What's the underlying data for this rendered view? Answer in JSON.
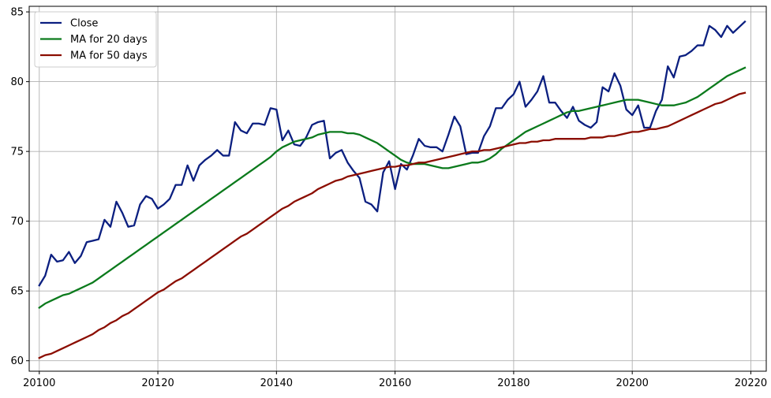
{
  "chart_data": {
    "type": "line",
    "title": "",
    "xlabel": "",
    "ylabel": "",
    "xlim": [
      20098.3,
      20222.6
    ],
    "ylim": [
      59.25,
      85.4
    ],
    "grid": true,
    "legend_position": "top-left",
    "xticks": [
      20100,
      20120,
      20140,
      20160,
      20180,
      20200,
      20220
    ],
    "yticks": [
      60,
      65,
      70,
      75,
      80,
      85
    ],
    "x": [
      20100,
      20101,
      20102,
      20103,
      20104,
      20105,
      20106,
      20107,
      20108,
      20109,
      20110,
      20111,
      20112,
      20113,
      20114,
      20115,
      20116,
      20117,
      20118,
      20119,
      20120,
      20121,
      20122,
      20123,
      20124,
      20125,
      20126,
      20127,
      20128,
      20129,
      20130,
      20131,
      20132,
      20133,
      20134,
      20135,
      20136,
      20137,
      20138,
      20139,
      20140,
      20141,
      20142,
      20143,
      20144,
      20145,
      20146,
      20147,
      20148,
      20149,
      20150,
      20151,
      20152,
      20153,
      20154,
      20155,
      20156,
      20157,
      20158,
      20159,
      20160,
      20161,
      20162,
      20163,
      20164,
      20165,
      20166,
      20167,
      20168,
      20169,
      20170,
      20171,
      20172,
      20173,
      20174,
      20175,
      20176,
      20177,
      20178,
      20179,
      20180,
      20181,
      20182,
      20183,
      20184,
      20185,
      20186,
      20187,
      20188,
      20189,
      20190,
      20191,
      20192,
      20193,
      20194,
      20195,
      20196,
      20197,
      20198,
      20199,
      20200,
      20201,
      20202,
      20203,
      20204,
      20205,
      20206,
      20207,
      20208,
      20209,
      20210,
      20211,
      20212,
      20213,
      20214,
      20215,
      20216,
      20217,
      20218,
      20219
    ],
    "series": [
      {
        "name": "Close",
        "color": "#0b1f80",
        "values": [
          65.4,
          66.1,
          67.6,
          67.1,
          67.2,
          67.8,
          67.0,
          67.5,
          68.5,
          68.6,
          68.7,
          70.1,
          69.6,
          71.4,
          70.6,
          69.6,
          69.7,
          71.2,
          71.8,
          71.6,
          70.9,
          71.2,
          71.6,
          72.6,
          72.6,
          74.0,
          72.9,
          74.0,
          74.4,
          74.7,
          75.1,
          74.7,
          74.7,
          77.1,
          76.5,
          76.3,
          77.0,
          77.0,
          76.9,
          78.1,
          78.0,
          75.8,
          76.5,
          75.5,
          75.4,
          76.0,
          76.9,
          77.1,
          77.2,
          74.5,
          74.9,
          75.1,
          74.2,
          73.6,
          73.1,
          71.4,
          71.2,
          70.7,
          73.5,
          74.3,
          72.3,
          74.1,
          73.7,
          74.7,
          75.9,
          75.4,
          75.3,
          75.3,
          75.0,
          76.2,
          77.5,
          76.8,
          74.8,
          74.9,
          74.9,
          76.1,
          76.8,
          78.1,
          78.1,
          78.7,
          79.1,
          80.0,
          78.2,
          78.7,
          79.3,
          80.4,
          78.5,
          78.5,
          77.9,
          77.4,
          78.2,
          77.2,
          76.9,
          76.7,
          77.1,
          79.6,
          79.3,
          80.6,
          79.7,
          78.0,
          77.6,
          78.3,
          76.7,
          76.7,
          77.9,
          78.7,
          81.1,
          80.3,
          81.8,
          81.9,
          82.2,
          82.6,
          82.6,
          84.0,
          83.7,
          83.2,
          84.0,
          83.5,
          83.9,
          84.3
        ]
      },
      {
        "name": "MA for 20 days",
        "color": "#0b7a1c",
        "values": [
          63.8,
          64.1,
          64.3,
          64.5,
          64.7,
          64.8,
          65.0,
          65.2,
          65.4,
          65.6,
          65.9,
          66.2,
          66.5,
          66.8,
          67.1,
          67.4,
          67.7,
          68.0,
          68.3,
          68.6,
          68.9,
          69.2,
          69.5,
          69.8,
          70.1,
          70.4,
          70.7,
          71.0,
          71.3,
          71.6,
          71.9,
          72.2,
          72.5,
          72.8,
          73.1,
          73.4,
          73.7,
          74.0,
          74.3,
          74.6,
          75.0,
          75.3,
          75.5,
          75.7,
          75.8,
          75.9,
          76.0,
          76.2,
          76.3,
          76.4,
          76.4,
          76.4,
          76.3,
          76.3,
          76.2,
          76.0,
          75.8,
          75.6,
          75.3,
          75.0,
          74.7,
          74.4,
          74.2,
          74.1,
          74.1,
          74.1,
          74.0,
          73.9,
          73.8,
          73.8,
          73.9,
          74.0,
          74.1,
          74.2,
          74.2,
          74.3,
          74.5,
          74.8,
          75.2,
          75.5,
          75.8,
          76.1,
          76.4,
          76.6,
          76.8,
          77.0,
          77.2,
          77.4,
          77.6,
          77.8,
          77.9,
          77.9,
          78.0,
          78.1,
          78.2,
          78.3,
          78.4,
          78.5,
          78.6,
          78.7,
          78.7,
          78.7,
          78.6,
          78.5,
          78.4,
          78.3,
          78.3,
          78.3,
          78.4,
          78.5,
          78.7,
          78.9,
          79.2,
          79.5,
          79.8,
          80.1,
          80.4,
          80.6,
          80.8,
          81.0
        ]
      },
      {
        "name": "MA for 50 days",
        "color": "#8b0d00",
        "values": [
          60.2,
          60.4,
          60.5,
          60.7,
          60.9,
          61.1,
          61.3,
          61.5,
          61.7,
          61.9,
          62.2,
          62.4,
          62.7,
          62.9,
          63.2,
          63.4,
          63.7,
          64.0,
          64.3,
          64.6,
          64.9,
          65.1,
          65.4,
          65.7,
          65.9,
          66.2,
          66.5,
          66.8,
          67.1,
          67.4,
          67.7,
          68.0,
          68.3,
          68.6,
          68.9,
          69.1,
          69.4,
          69.7,
          70.0,
          70.3,
          70.6,
          70.9,
          71.1,
          71.4,
          71.6,
          71.8,
          72.0,
          72.3,
          72.5,
          72.7,
          72.9,
          73.0,
          73.2,
          73.3,
          73.4,
          73.5,
          73.6,
          73.7,
          73.8,
          73.9,
          73.9,
          74.0,
          74.0,
          74.1,
          74.2,
          74.2,
          74.3,
          74.4,
          74.5,
          74.6,
          74.7,
          74.8,
          74.9,
          75.0,
          75.0,
          75.1,
          75.1,
          75.2,
          75.3,
          75.4,
          75.5,
          75.6,
          75.6,
          75.7,
          75.7,
          75.8,
          75.8,
          75.9,
          75.9,
          75.9,
          75.9,
          75.9,
          75.9,
          76.0,
          76.0,
          76.0,
          76.1,
          76.1,
          76.2,
          76.3,
          76.4,
          76.4,
          76.5,
          76.6,
          76.6,
          76.7,
          76.8,
          77.0,
          77.2,
          77.4,
          77.6,
          77.8,
          78.0,
          78.2,
          78.4,
          78.5,
          78.7,
          78.9,
          79.1,
          79.2
        ]
      }
    ]
  }
}
